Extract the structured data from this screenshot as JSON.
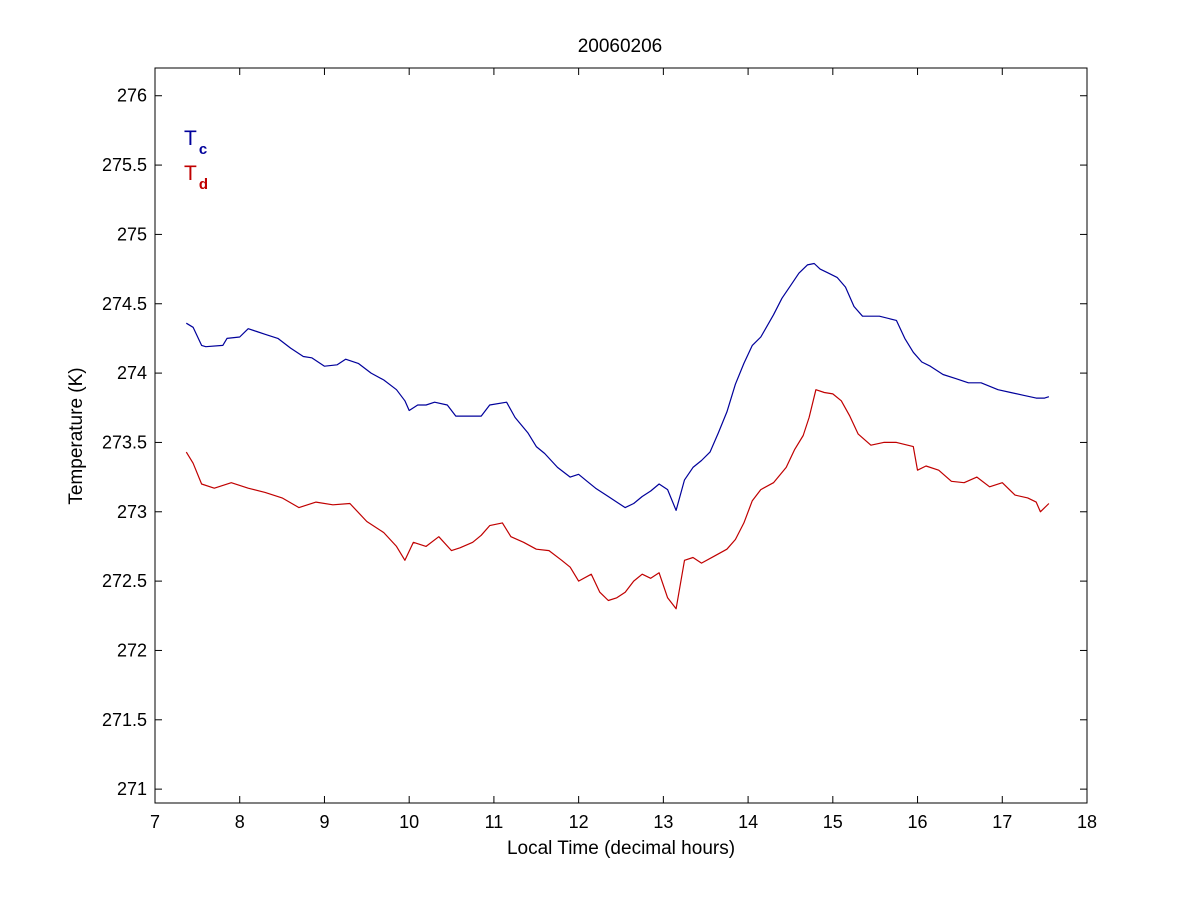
{
  "chart_data": {
    "type": "line",
    "title": "20060206",
    "xlabel": "Local Time (decimal hours)",
    "ylabel": "Temperature (K)",
    "xlim": [
      7,
      18
    ],
    "ylim": [
      270.9,
      276.2
    ],
    "xticks": [
      7,
      8,
      9,
      10,
      11,
      12,
      13,
      14,
      15,
      16,
      17,
      18
    ],
    "xtick_labels": [
      "7",
      "8",
      "9",
      "10",
      "11",
      "12",
      "13",
      "14",
      "15",
      "16",
      "17",
      "18"
    ],
    "yticks": [
      271,
      271.5,
      272,
      272.5,
      273,
      273.5,
      274,
      274.5,
      275,
      275.5,
      276
    ],
    "ytick_labels": [
      "271",
      "271.5",
      "272",
      "272.5",
      "273",
      "273.5",
      "274",
      "274.5",
      "275",
      "275.5",
      "276"
    ],
    "grid": false,
    "legend_position": "top-left",
    "series": [
      {
        "name": "T",
        "subscript": "c",
        "color": "#00009b",
        "x": [
          7.37,
          7.45,
          7.55,
          7.6,
          7.8,
          7.85,
          8.0,
          8.1,
          8.2,
          8.3,
          8.45,
          8.6,
          8.75,
          8.85,
          9.0,
          9.15,
          9.25,
          9.4,
          9.55,
          9.7,
          9.85,
          9.95,
          10.0,
          10.1,
          10.2,
          10.3,
          10.45,
          10.55,
          10.6,
          10.85,
          10.95,
          11.15,
          11.25,
          11.4,
          11.5,
          11.6,
          11.75,
          11.9,
          12.0,
          12.1,
          12.2,
          12.35,
          12.45,
          12.55,
          12.65,
          12.75,
          12.85,
          12.95,
          13.05,
          13.15,
          13.25,
          13.35,
          13.45,
          13.55,
          13.65,
          13.75,
          13.85,
          13.95,
          14.05,
          14.15,
          14.3,
          14.4,
          14.5,
          14.6,
          14.7,
          14.78,
          14.85,
          14.95,
          15.05,
          15.15,
          15.25,
          15.35,
          15.45,
          15.55,
          15.75,
          15.85,
          15.95,
          16.05,
          16.15,
          16.3,
          16.45,
          16.6,
          16.75,
          16.95,
          17.1,
          17.25,
          17.4,
          17.5,
          17.55
        ],
        "y": [
          274.36,
          274.33,
          274.2,
          274.19,
          274.2,
          274.25,
          274.26,
          274.32,
          274.3,
          274.28,
          274.25,
          274.18,
          274.12,
          274.11,
          274.05,
          274.06,
          274.1,
          274.07,
          274.0,
          273.95,
          273.88,
          273.8,
          273.73,
          273.77,
          273.77,
          273.79,
          273.77,
          273.69,
          273.69,
          273.69,
          273.77,
          273.79,
          273.68,
          273.57,
          273.47,
          273.42,
          273.32,
          273.25,
          273.27,
          273.22,
          273.17,
          273.11,
          273.07,
          273.03,
          273.06,
          273.11,
          273.15,
          273.2,
          273.16,
          273.01,
          273.23,
          273.32,
          273.37,
          273.43,
          273.57,
          273.72,
          273.92,
          274.07,
          274.2,
          274.26,
          274.42,
          274.54,
          274.63,
          274.72,
          274.78,
          274.79,
          274.75,
          274.72,
          274.69,
          274.62,
          274.48,
          274.41,
          274.41,
          274.41,
          274.38,
          274.25,
          274.15,
          274.08,
          274.05,
          273.99,
          273.96,
          273.93,
          273.93,
          273.88,
          273.86,
          273.84,
          273.82,
          273.82,
          273.83
        ]
      },
      {
        "name": "T",
        "subscript": "d",
        "color": "#c00000",
        "x": [
          7.37,
          7.45,
          7.55,
          7.7,
          7.9,
          8.1,
          8.3,
          8.5,
          8.7,
          8.9,
          9.1,
          9.3,
          9.5,
          9.7,
          9.85,
          9.95,
          10.05,
          10.2,
          10.35,
          10.5,
          10.6,
          10.75,
          10.85,
          10.95,
          11.1,
          11.2,
          11.35,
          11.5,
          11.65,
          11.8,
          11.9,
          12.0,
          12.15,
          12.25,
          12.35,
          12.45,
          12.55,
          12.65,
          12.75,
          12.85,
          12.95,
          13.05,
          13.15,
          13.25,
          13.35,
          13.45,
          13.6,
          13.75,
          13.85,
          13.95,
          14.05,
          14.15,
          14.3,
          14.45,
          14.55,
          14.65,
          14.72,
          14.8,
          14.9,
          15.0,
          15.1,
          15.2,
          15.3,
          15.45,
          15.6,
          15.75,
          15.95,
          16.0,
          16.1,
          16.25,
          16.4,
          16.55,
          16.7,
          16.85,
          17.0,
          17.15,
          17.3,
          17.4,
          17.45,
          17.55
        ],
        "y": [
          273.43,
          273.35,
          273.2,
          273.17,
          273.21,
          273.17,
          273.14,
          273.1,
          273.03,
          273.07,
          273.05,
          273.06,
          272.93,
          272.85,
          272.75,
          272.65,
          272.78,
          272.75,
          272.82,
          272.72,
          272.74,
          272.78,
          272.83,
          272.9,
          272.92,
          272.82,
          272.78,
          272.73,
          272.72,
          272.65,
          272.6,
          272.5,
          272.55,
          272.42,
          272.36,
          272.38,
          272.42,
          272.5,
          272.55,
          272.52,
          272.56,
          272.38,
          272.3,
          272.65,
          272.67,
          272.63,
          272.68,
          272.73,
          272.8,
          272.92,
          273.08,
          273.16,
          273.21,
          273.32,
          273.45,
          273.55,
          273.68,
          273.88,
          273.86,
          273.85,
          273.8,
          273.69,
          273.56,
          273.48,
          273.5,
          273.5,
          273.47,
          273.3,
          273.33,
          273.3,
          273.22,
          273.21,
          273.25,
          273.18,
          273.21,
          273.12,
          273.1,
          273.07,
          273.0,
          273.06
        ]
      }
    ]
  }
}
